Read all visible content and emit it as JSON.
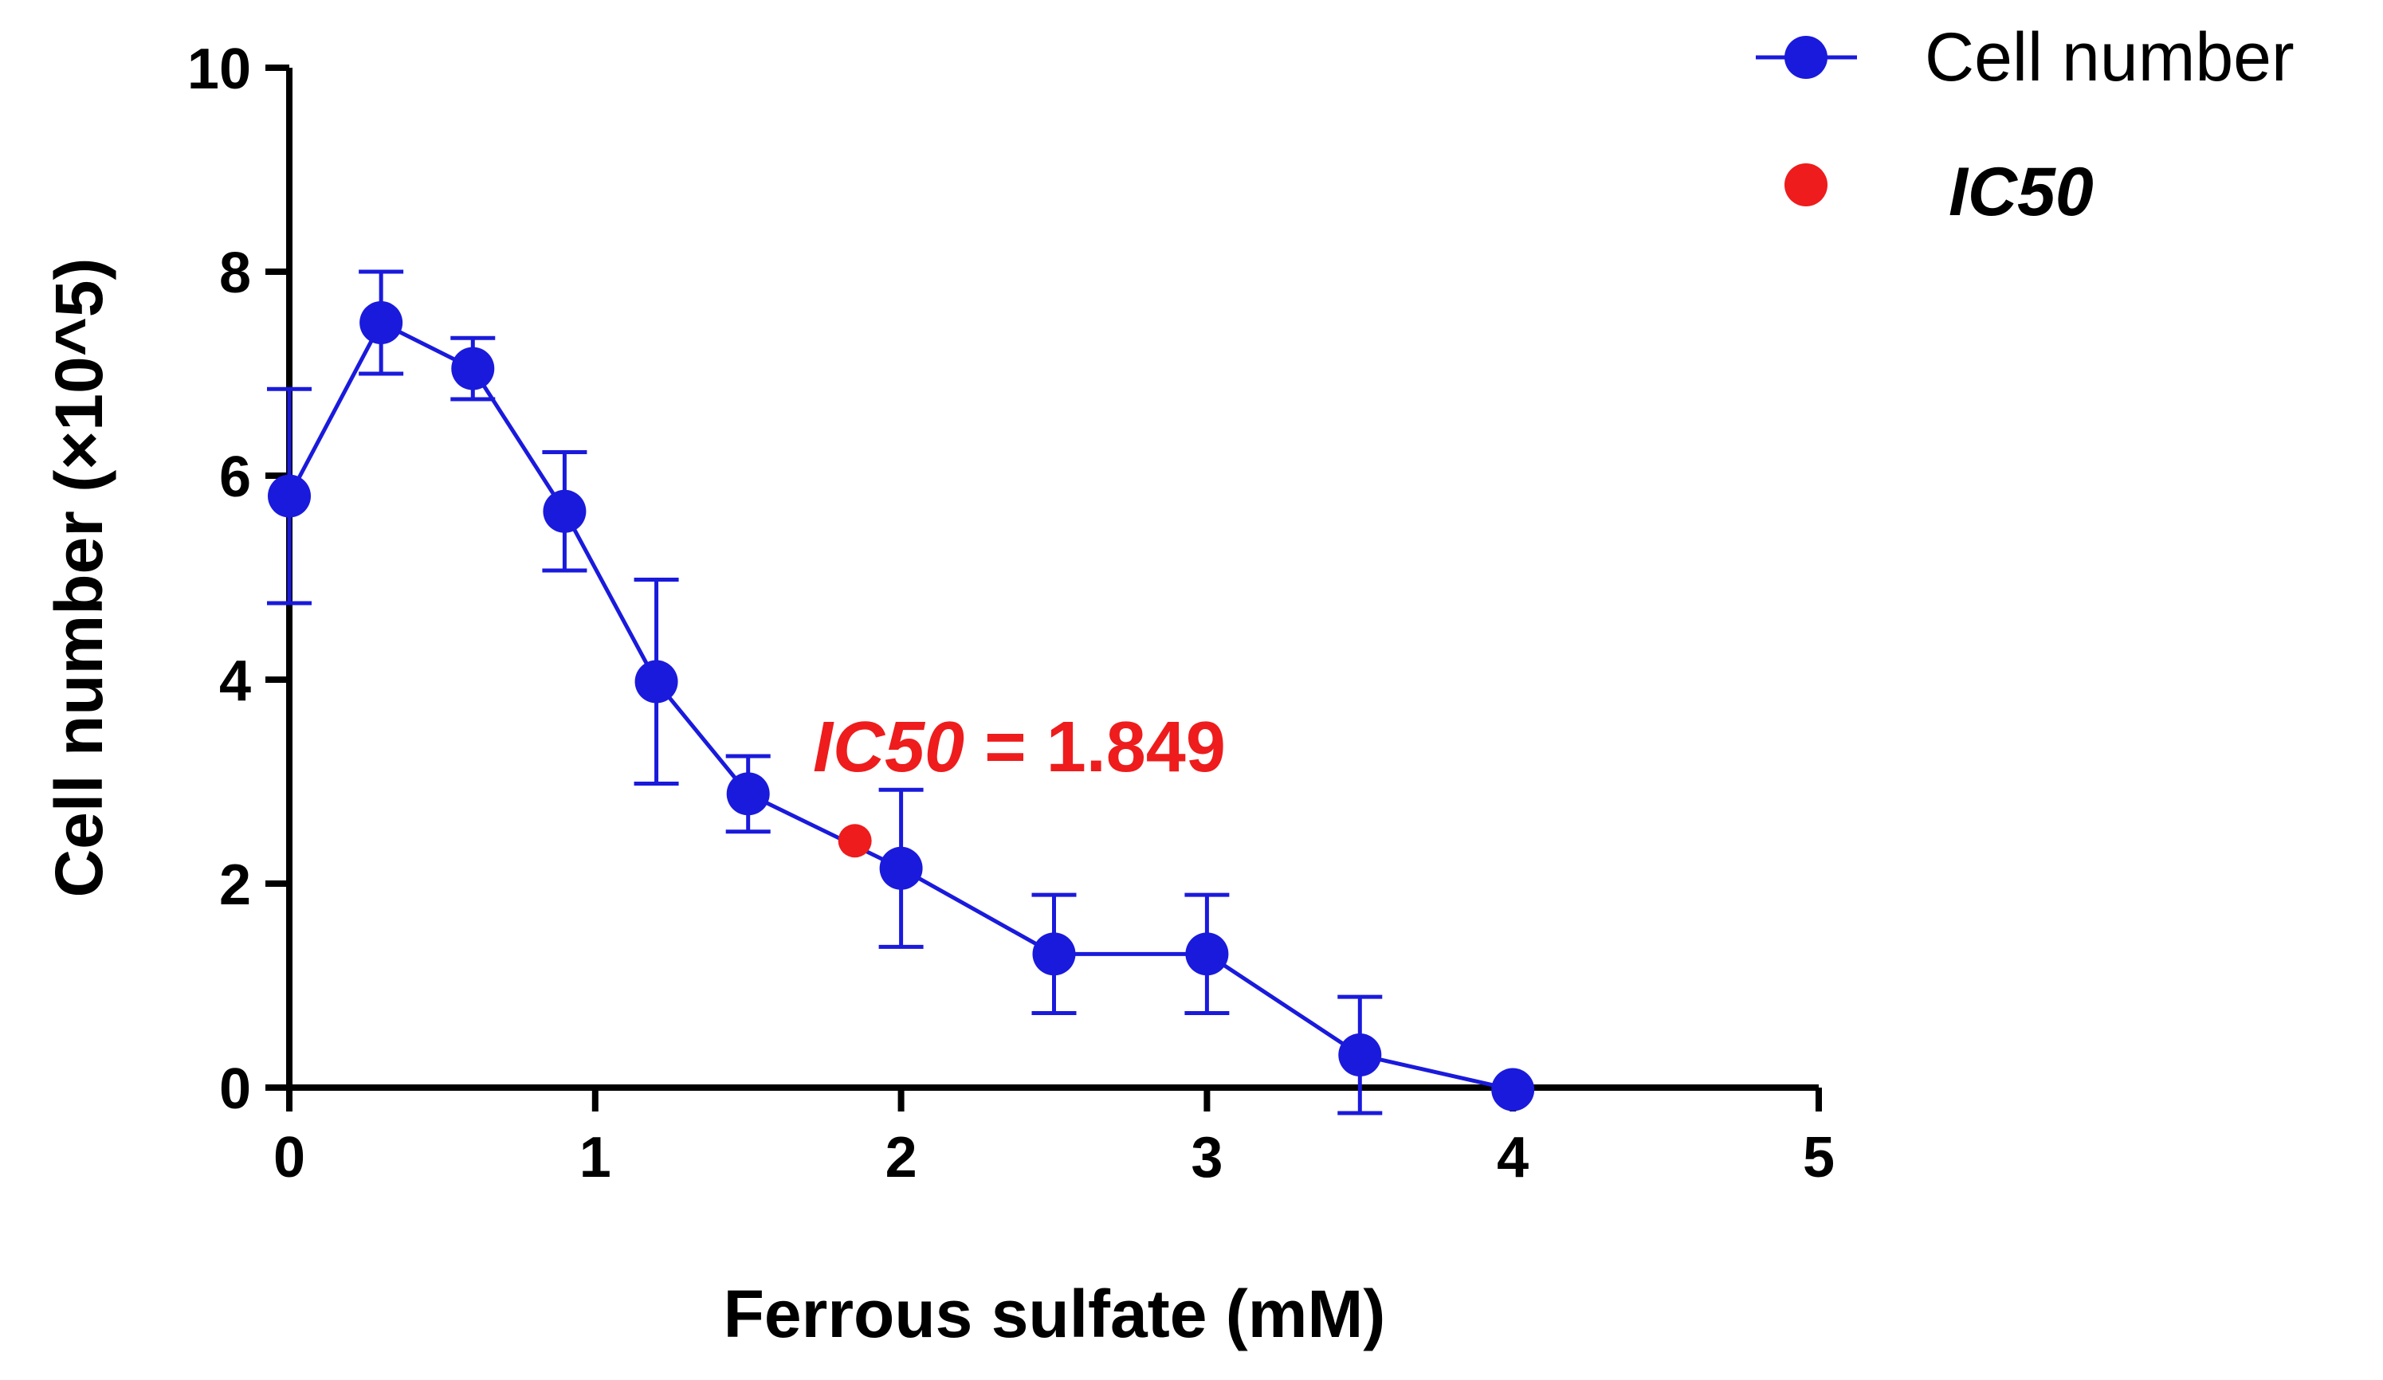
{
  "chart_data": {
    "type": "line",
    "xlabel": "Ferrous sulfate (mM)",
    "ylabel": "Cell number (×10^5)",
    "xlim": [
      0,
      5
    ],
    "ylim": [
      0,
      10
    ],
    "xticks": [
      "0",
      "1",
      "2",
      "3",
      "4",
      "5"
    ],
    "yticks": [
      "0",
      "2",
      "4",
      "6",
      "8",
      "10"
    ],
    "grid": false,
    "legend_position": "top-right",
    "series": [
      {
        "name": "Cell number",
        "color": "#1a1adc",
        "marker": "circle",
        "x": [
          0,
          0.3,
          0.6,
          0.9,
          1.2,
          1.5,
          2.0,
          2.5,
          3.0,
          3.5,
          4.0
        ],
        "y": [
          5.8,
          7.5,
          7.05,
          5.65,
          3.98,
          2.88,
          2.15,
          1.31,
          1.31,
          0.32,
          -0.02
        ],
        "error": [
          1.05,
          0.5,
          0.3,
          0.58,
          1.0,
          0.37,
          0.77,
          0.58,
          0.58,
          0.57,
          0.0
        ]
      },
      {
        "name": "IC50",
        "color": "#ee1c1c",
        "marker": "circle",
        "x": [
          1.849
        ],
        "y": [
          2.42
        ]
      }
    ],
    "annotations": [
      {
        "label": "IC50",
        "value": "1.849",
        "color": "#ee1c1c"
      }
    ]
  }
}
